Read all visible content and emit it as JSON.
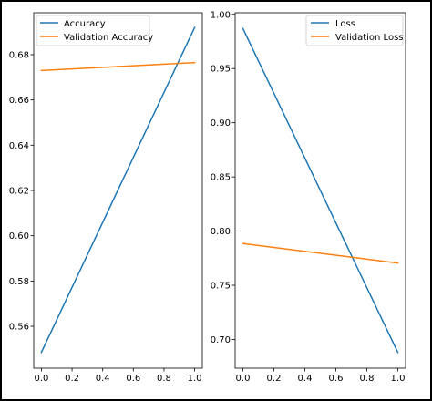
{
  "chart_data": [
    {
      "type": "line",
      "title": "",
      "xlabel": "",
      "ylabel": "",
      "x": [
        0.0,
        1.0
      ],
      "xlim": [
        -0.05,
        1.05
      ],
      "ylim": [
        0.5415,
        0.6985
      ],
      "xticks": [
        "0.0",
        "0.2",
        "0.4",
        "0.6",
        "0.8",
        "1.0"
      ],
      "yticks": [
        "0.56",
        "0.58",
        "0.60",
        "0.62",
        "0.64",
        "0.66",
        "0.68"
      ],
      "grid": false,
      "legend_position": "upper-left",
      "series": [
        {
          "name": "Accuracy",
          "values": [
            0.5485,
            0.692
          ],
          "color": "#1f77b4"
        },
        {
          "name": "Validation Accuracy",
          "values": [
            0.673,
            0.6765
          ],
          "color": "#ff7f0e"
        }
      ]
    },
    {
      "type": "line",
      "title": "",
      "xlabel": "",
      "ylabel": "",
      "x": [
        0.0,
        1.0
      ],
      "xlim": [
        -0.05,
        1.05
      ],
      "ylim": [
        0.6735,
        1.0015
      ],
      "xticks": [
        "0.0",
        "0.2",
        "0.4",
        "0.6",
        "0.8",
        "1.0"
      ],
      "yticks": [
        "0.70",
        "0.75",
        "0.80",
        "0.85",
        "0.90",
        "0.95",
        "1.00"
      ],
      "grid": false,
      "legend_position": "upper-right",
      "series": [
        {
          "name": "Loss",
          "values": [
            0.987,
            0.688
          ],
          "color": "#1f77b4"
        },
        {
          "name": "Validation Loss",
          "values": [
            0.7885,
            0.7705
          ],
          "color": "#ff7f0e"
        }
      ]
    }
  ]
}
